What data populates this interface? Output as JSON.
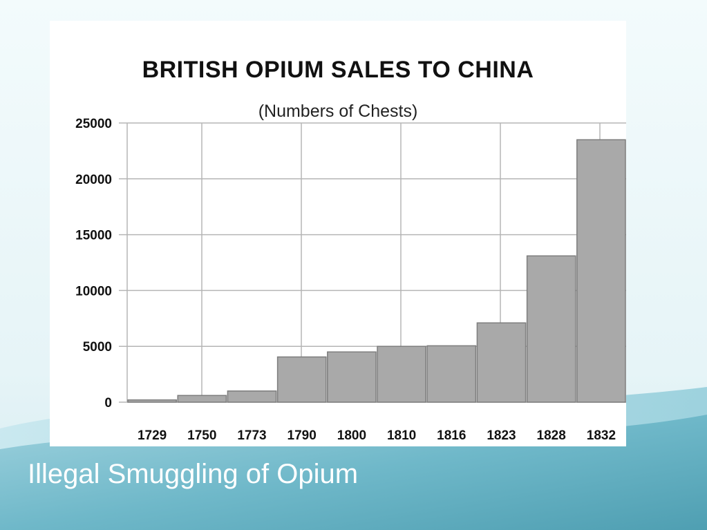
{
  "slide": {
    "caption": "Illegal Smuggling of Opium",
    "colors": {
      "background_top": "#eef8fa",
      "wave_light": "#a9d8e2",
      "wave_dark": "#5faebf",
      "caption_text": "#ffffff"
    }
  },
  "chart_data": {
    "type": "bar",
    "title": "BRITISH OPIUM SALES TO CHINA",
    "subtitle": "(Numbers of Chests)",
    "xlabel": "",
    "ylabel": "",
    "categories": [
      "1729",
      "1750",
      "1773",
      "1790",
      "1800",
      "1810",
      "1816",
      "1823",
      "1828",
      "1832"
    ],
    "values": [
      200,
      600,
      1000,
      4050,
      4500,
      5000,
      5050,
      7100,
      13100,
      23500
    ],
    "ylim": [
      0,
      25000
    ],
    "yticks": [
      "0",
      "5000",
      "10000",
      "15000",
      "20000",
      "25000"
    ],
    "grid": true,
    "legend": "none",
    "colors": {
      "bar_fill": "#a9a9a9",
      "bar_stroke": "#7d7d7d",
      "grid": "#b5b5b5"
    }
  }
}
